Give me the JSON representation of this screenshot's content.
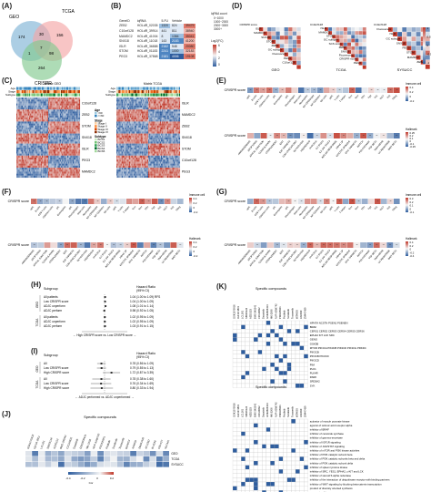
{
  "panels": {
    "A": {
      "label": "(A)",
      "sets": [
        "GEO",
        "TCGA",
        "CRISPR"
      ],
      "counts": [
        "174",
        "156",
        "30",
        "7",
        "1",
        "98",
        "264"
      ]
    },
    "B": {
      "label": "(B)",
      "headers": [
        "GeneID",
        "lqRNA",
        "5-FU",
        "Vehicle",
        "log2(FC)"
      ],
      "rows": [
        [
          "ZEB2",
          "HOLdR_02035",
          "1320",
          "824",
          "39479"
        ],
        [
          "C10orf128",
          "HOLdR_39914",
          "441",
          "811",
          "38940"
        ],
        [
          "MAMDC2",
          "HOLdR_41004",
          "8",
          "1384",
          "35041"
        ],
        [
          "SNX18",
          "HOLdR_11018",
          "143",
          "2183",
          "41200"
        ],
        [
          "ISLR",
          "HOLdR_36888",
          "2182",
          "548",
          "20080"
        ],
        [
          "STOM",
          "HOLdR_01183",
          "2241",
          "1000",
          "32183"
        ],
        [
          "PEG3",
          "HOLdR_37868",
          "2181",
          "4006",
          "19108"
        ]
      ],
      "legend_title": "lqRNA count",
      "legend_items": [
        "0~1000",
        "1000~2000",
        "2000~3000",
        "3000+"
      ],
      "fc_title": "Log2(FC)",
      "fc_ticks": [
        "6",
        "4",
        "2",
        "0"
      ]
    },
    "C": {
      "label": "(C)",
      "left_title": "Matrix GEO",
      "right_title": "Matrix TCGA",
      "annot_rows": [
        "Age",
        "Stage",
        "Subtype"
      ],
      "genes_left": [
        "C10orf128",
        "ZEB2",
        "STOM",
        "SNX18",
        "ISLR",
        "PEG3",
        "MAMDC2"
      ],
      "genes_right": [
        "ISLR",
        "MAMDC2",
        "ZEB2",
        "SNX18",
        "STOM",
        "C10orf128",
        "PEG3"
      ],
      "legend_age": "Age",
      "age_items": [
        ">60",
        "<=60"
      ],
      "legend_stage": "Stage",
      "stage_items": [
        "Stage I",
        "Stage II",
        "Stage III",
        "Stage IV"
      ],
      "legend_subtype": "Subtype",
      "subtype_items": [
        "BCS1",
        "BCS2",
        "BCS3",
        "BCS4",
        "BCS5"
      ]
    },
    "D": {
      "label": "(D)",
      "matrices": [
        {
          "name": "GEO",
          "genes": [
            "CRISPR score",
            "ISLR",
            "MAMDC2",
            "SNX18",
            "STOM",
            "ZEB2",
            "GC subtype",
            "Fluorescent",
            "PEG3",
            "C10orf128"
          ]
        },
        {
          "name": "TCGA",
          "genes": [
            "C10orf128",
            "ISLR",
            "MAMDC2",
            "STOM",
            "GC subtype",
            "SCS score",
            "ZEB2",
            "SNX18",
            "Fluorescent",
            "CRISPR score",
            "PEG3"
          ]
        },
        {
          "name": "SYSUCC",
          "genes": [
            "C10orf128",
            "Fluorescent",
            "ISLR",
            "GC subtype",
            "SNX18",
            "PEG3",
            "STOM",
            "MAMDC2",
            "ZEB2"
          ]
        }
      ],
      "scale_ticks": [
        "1",
        "0.5",
        "0",
        "-0.5",
        "-1"
      ]
    },
    "E": {
      "label": "(E)",
      "row_label": "CRISPR score",
      "legend1_title": "Immune cell",
      "legend1_ticks": [
        "0.4",
        "0.2",
        "0",
        "-0.2"
      ],
      "cells1": [
        "aDC",
        "B cells",
        "CD8 T cells",
        "Cytotoxic cells",
        "DC",
        "Eosinophils",
        "iDC",
        "Macrophages",
        "Mast cells",
        "Neutrophils",
        "NK CD56bright",
        "NK CD56dim",
        "NK cells",
        "pDC",
        "T cells",
        "T helper",
        "Tcm",
        "Tem",
        "TFH",
        "Tgd",
        "Th1",
        "Th17",
        "Th2",
        "TReg"
      ],
      "legend2_title": "Hallmark",
      "legend2_ticks": [
        "0.25",
        "0.2",
        "0.1",
        "0",
        "-0.1",
        "-0.25"
      ],
      "cells2": [
        "ANGIOGENESIS",
        "APOPTOSIS",
        "APICAL JUNCTION",
        "COAGULATION",
        "COMPLEMENT",
        "EMT",
        "E2F TARGETS",
        "G2M CHECKPOINT",
        "GLYCOLYSIS",
        "HEDGEHOG",
        "HYPOXIA",
        "IL2 STAT5",
        "IL6 JAK STAT3",
        "INFLAM RESPONSE",
        "KRAS UP",
        "MITOTIC SPINDLE",
        "MYC TARGETS",
        "NOTCH",
        "P53 PATHWAY",
        "TGF BETA",
        "TNFA NFKB",
        "UV RESPONSE",
        "WNT BETA"
      ]
    },
    "F": {
      "label": "(F)",
      "row_label": "CRISPR score",
      "legend1_title": "Immune cell",
      "legend1_ticks": [
        "0.4",
        "0.2",
        "0",
        "-0.2"
      ],
      "legend2_title": "Hallmark",
      "legend2_ticks": [
        "0.4",
        "0.2",
        "0",
        "-0.2"
      ]
    },
    "G": {
      "label": "(G)",
      "row_label": "CRISPR score",
      "legend1_title": "Immune cell",
      "legend1_ticks": [
        "0.3",
        "0.2",
        "0.1",
        "0",
        "-0.1"
      ],
      "legend2_title": "Hallmark",
      "legend2_ticks": [
        "0.4",
        "0.2",
        "0",
        "-0.2",
        "-0.4"
      ]
    },
    "H": {
      "label": "(H)",
      "header_group": "Subgroup",
      "header_hr": "Hazard Ratio",
      "header_ci": "(95% CI)",
      "groups": [
        {
          "name": "GEO",
          "rows": [
            {
              "label": "All patients",
              "text": "1.04 (1.00 to 1.09) RFS"
            },
            {
              "label": "Low CRISPR score",
              "text": "1.04 (1.00 to 1.09)"
            },
            {
              "label": "ADJC unperform",
              "text": "1.08 (1.01 to 1.14)"
            },
            {
              "label": "ADJC perform",
              "text": "0.98 (0.92 to 1.05)"
            }
          ]
        },
        {
          "name": "TCGA",
          "rows": [
            {
              "label": "All patients",
              "text": "1.02 (0.95 to 1.09)"
            },
            {
              "label": "ADJC unperform",
              "text": "1.02 (0.95 to 1.09)"
            },
            {
              "label": "ADJC perform",
              "text": "1.03 (0.91 to 1.15)"
            }
          ]
        }
      ],
      "axis_label": "← High CRISPR score  vs.  Low CRISPR score →"
    },
    "I": {
      "label": "(I)",
      "header_group": "Subgroup",
      "header_hr": "Hazard Ratio",
      "header_ci": "(95% CI)",
      "groups": [
        {
          "name": "GEO",
          "rows": [
            {
              "label": "All",
              "text": "0.78 (0.56 to 1.09)"
            },
            {
              "label": "Low CRISPR score",
              "text": "0.79 (0.55 to 1.13)"
            },
            {
              "label": "High CRISPR score",
              "text": "1.72 (0.87 to 3.39)"
            }
          ]
        },
        {
          "name": "TCGA",
          "rows": [
            {
              "label": "All",
              "text": "0.78 (0.38 to 1.60)"
            },
            {
              "label": "Low CRISPR score",
              "text": "0.76 (0.34 to 1.69)"
            },
            {
              "label": "High CRISPR score",
              "text": "0.80 (0.33 to 1.94)"
            }
          ]
        }
      ],
      "axis_label": "← ADJC performed  vs.  ADJC unperformed →"
    },
    "J": {
      "label": "(J)",
      "title": "Specific compounds",
      "rows": [
        "GEO",
        "TCGA",
        "SYSUCC"
      ],
      "compounds": [
        "GSK1070916",
        "IGF1R 3801",
        "LCL161",
        "SB505124",
        "AZD5153",
        "BMS-345541",
        "CZC24832",
        "Dasatinib",
        "GSK2606414",
        "MK-2206",
        "NVP-ADW742",
        "PD0325901",
        "Pictilisib",
        "Sorafenib",
        "Tozasertib",
        "WZ4003",
        "XAV939",
        "ZM447439",
        "AT13387",
        "BI-2536",
        "OSI-027",
        "NU7441"
      ],
      "scale_ticks": [
        "-0.4",
        "-0.2",
        "0",
        "0.2"
      ],
      "scale_title": "Cor"
    },
    "K": {
      "label": "(K)",
      "title_top": "Specific compounds",
      "top_targets": [
        "HPHTA NCSTN PSEN1 PSENEN",
        "BRAF",
        "CERS1 CERS2 CERS3 CERS4 CERS5 CERS6",
        "EPHA2 KIT LCK SRC",
        "GENG",
        "GSK3B",
        "MTOR PIK3CA PIK3CB PIK3CD PIK3CG PRKDC",
        "PIK3CB",
        "PIK3CB PIK3CD",
        "PIK3CD",
        "PIM",
        "PLK1",
        "PLK4R",
        "PARK",
        "SRD5A2",
        "SYK"
      ],
      "title_bottom": "Specific compounds",
      "bottom_targets": [
        "activator of muscle pyruvate kinase",
        "agonist of retinoic acid receptor alpha",
        "inhibitor of BRAF",
        "inhibitor of ceramide synthase",
        "inhibitor of gamma-secretase",
        "inhibitor of IGF1R signaling",
        "inhibitor of JAK/STAT signaling",
        "inhibitor of mTOR and PI3K kinase activities",
        "inhibitor of PI3K catalytic subunit beta",
        "inhibitor of PI3K catalytic subunits beta and delta",
        "inhibitor of PI3K catalytic subunit delta",
        "inhibitor of spleen tyrosine kinase",
        "inhibitor of SRC, YES1, EPHA2, c-KIT and LCK",
        "inhibitor of steroid 5-alpha reductase",
        "inhibitor of the interaction of ubiquitinase receptor with binding partners",
        "inhibitor of WNT signaling by blocking beta-catenin transcription",
        "product of diversity oriented synthesis",
        "sequencing kit"
      ]
    }
  },
  "colors": {
    "red": "#c0392b",
    "blue": "#2e5d9e",
    "light": "#f5f5f5"
  }
}
